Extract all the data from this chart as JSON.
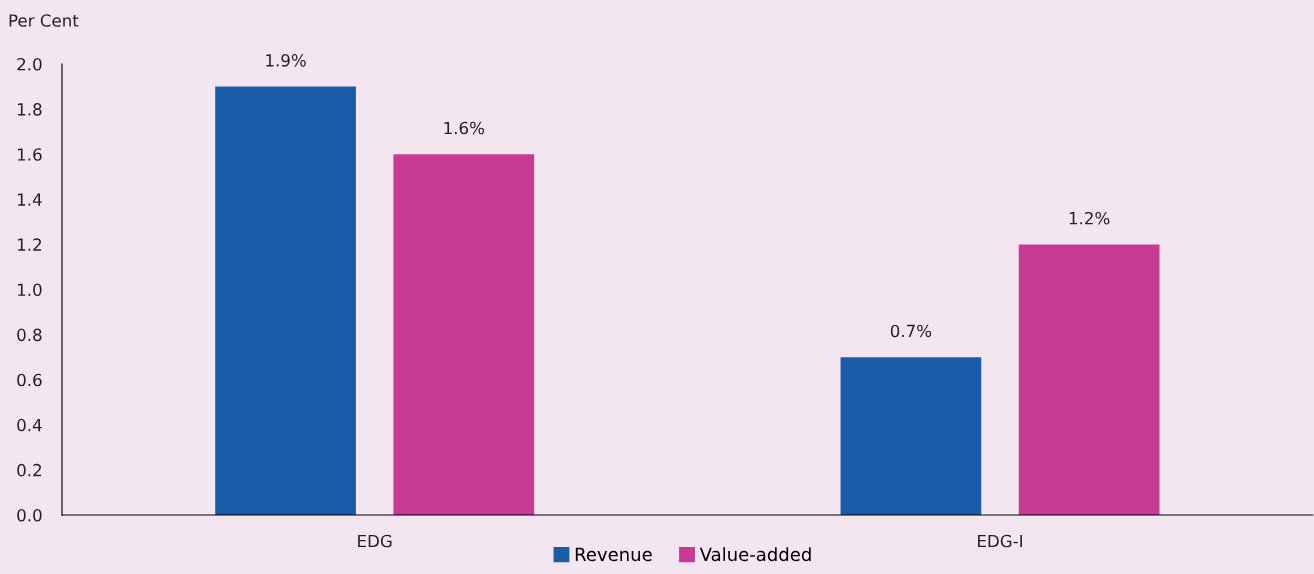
{
  "chart_data": {
    "type": "bar",
    "ylabel": "Per Cent",
    "categories": [
      "EDG",
      "EDG-I"
    ],
    "series": [
      {
        "name": "Revenue",
        "color": "#1a5ca8",
        "values": [
          1.9,
          0.7
        ],
        "value_labels": [
          "1.9%",
          "0.7%"
        ]
      },
      {
        "name": "Value-added",
        "color": "#c93a94",
        "values": [
          1.6,
          1.2
        ],
        "value_labels": [
          "1.6%",
          "1.2%"
        ]
      }
    ],
    "ylim": [
      0,
      2.0
    ],
    "yticks": [
      {
        "value": 0,
        "label": "0.0"
      },
      {
        "value": 0.2,
        "label": "0.2"
      },
      {
        "value": 0.4,
        "label": "0.4"
      },
      {
        "value": 0.6,
        "label": "0.6"
      },
      {
        "value": 0.8,
        "label": "0.8"
      },
      {
        "value": 1.0,
        "label": "1.0"
      },
      {
        "value": 1.2,
        "label": "1.2"
      },
      {
        "value": 1.4,
        "label": "1.4"
      },
      {
        "value": 1.6,
        "label": "1.6"
      },
      {
        "value": 1.8,
        "label": "1.8"
      },
      {
        "value": 2.0,
        "label": "2.0"
      }
    ],
    "grid": false,
    "legend": "bottom"
  }
}
